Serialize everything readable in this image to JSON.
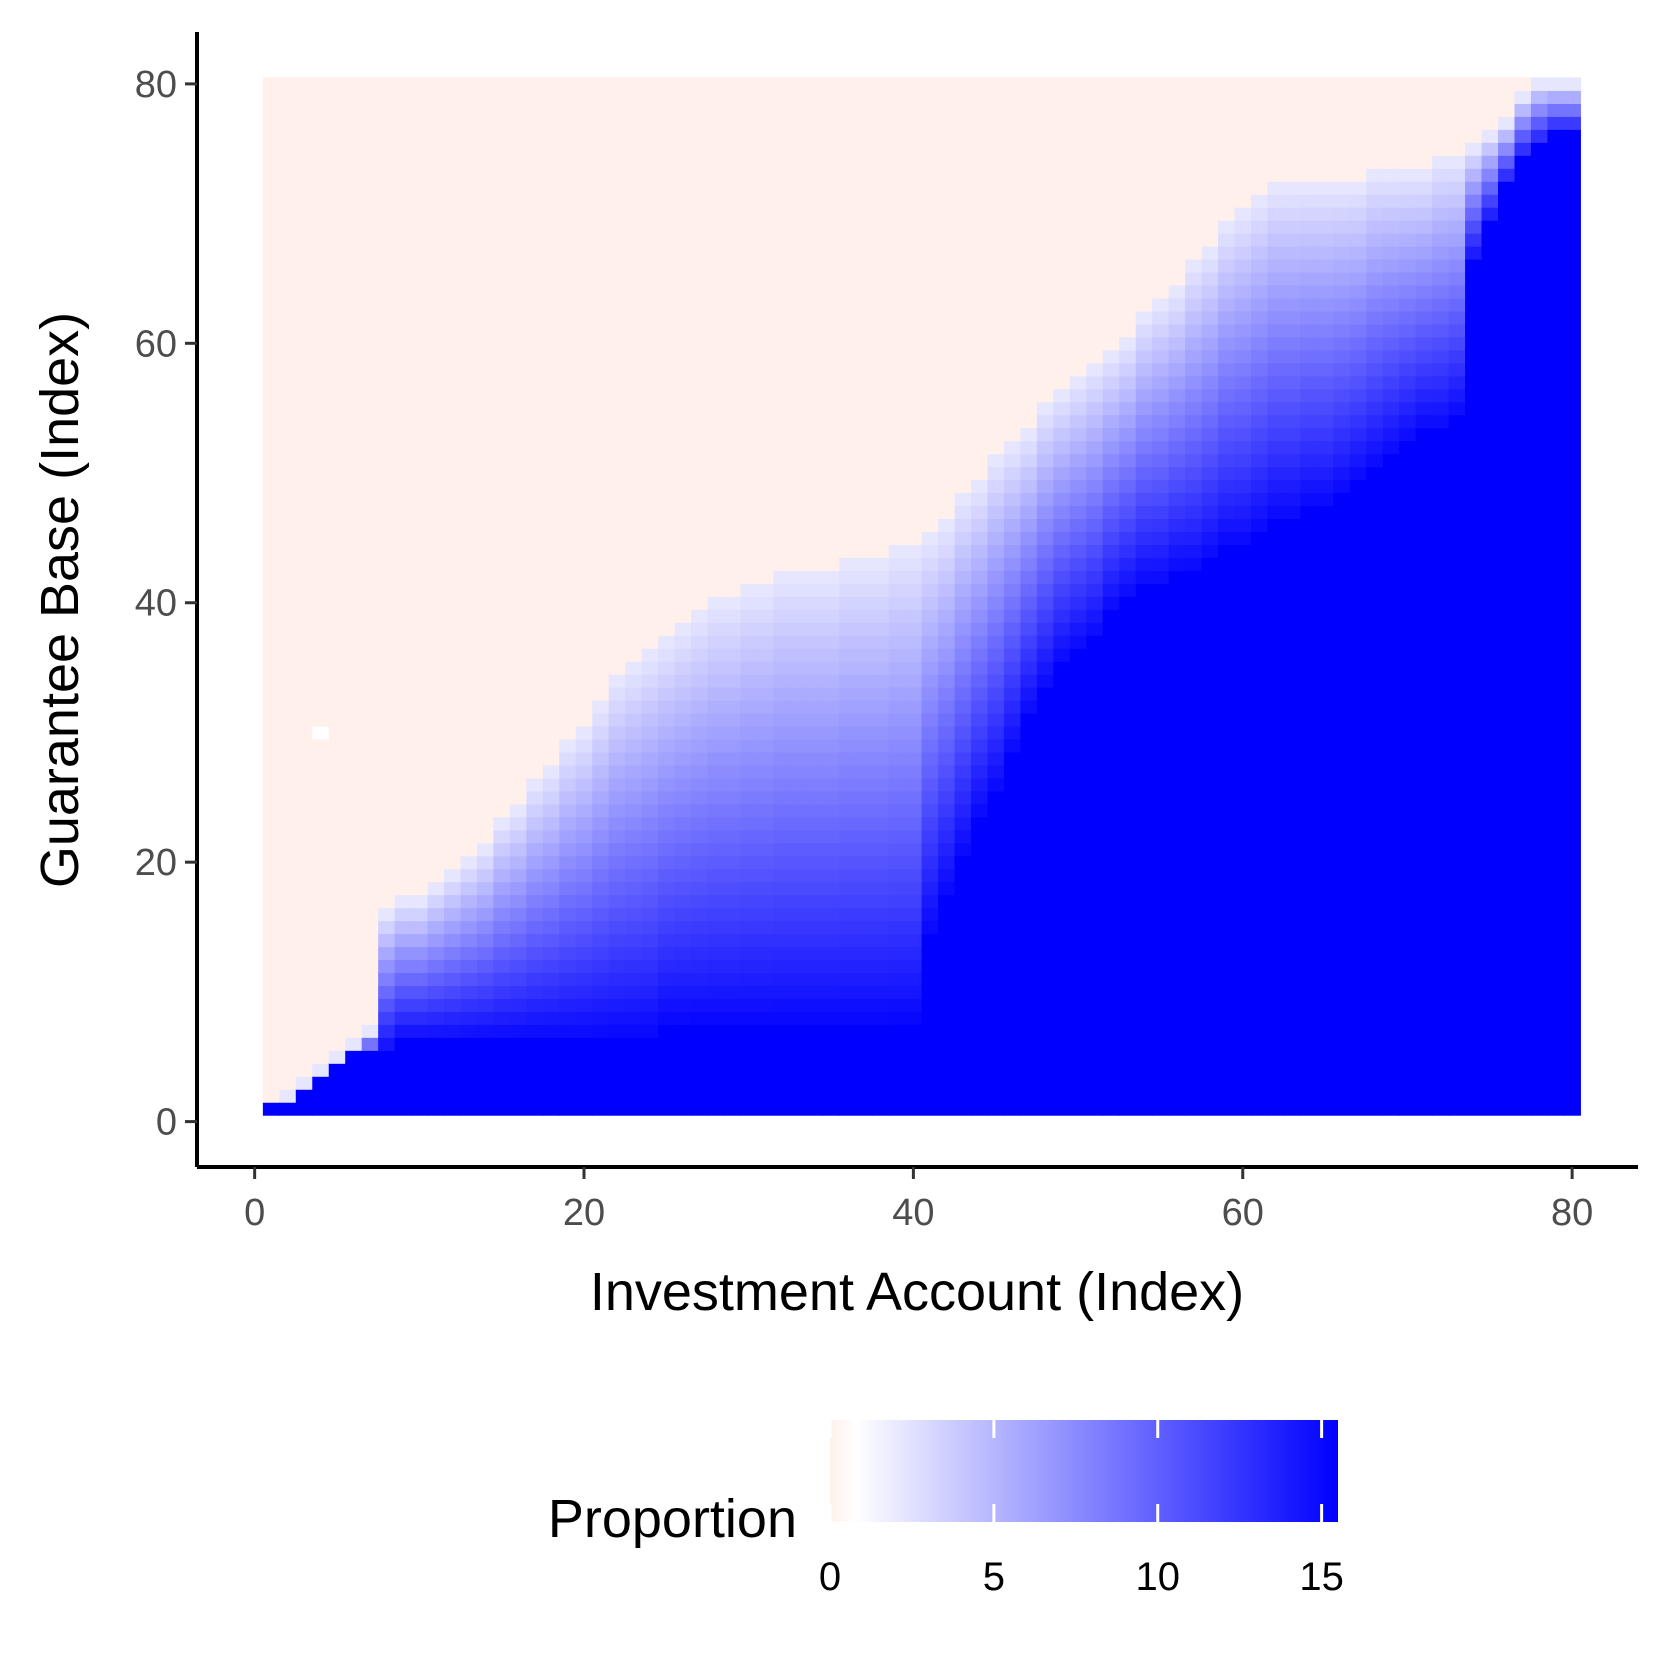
{
  "chart_data": {
    "type": "heatmap",
    "xlabel": "Investment Account (Index)",
    "ylabel": "Guarantee Base (Index)",
    "x_ticks": [
      "0",
      "20",
      "40",
      "60",
      "80"
    ],
    "y_ticks": [
      "0",
      "20",
      "40",
      "60",
      "80"
    ],
    "xlim": [
      -3.5,
      84
    ],
    "ylim": [
      -3.5,
      84
    ],
    "x_range": [
      1,
      80
    ],
    "y_range": [
      1,
      80
    ],
    "grid": false,
    "legend": {
      "title": "Proportion",
      "position": "bottom",
      "labels": [
        "0",
        "5",
        "10",
        "15"
      ],
      "min": 0,
      "max": 15.5
    },
    "colors": {
      "low": "#fff0ec",
      "mid": "#ffffff",
      "high": "#0000ff",
      "axis": "#000000"
    },
    "boundary_upper": [
      [
        1,
        1
      ],
      [
        7,
        7
      ],
      [
        8,
        16
      ],
      [
        11,
        18
      ],
      [
        14,
        21
      ],
      [
        18,
        27
      ],
      [
        21,
        32
      ],
      [
        23,
        35
      ],
      [
        27,
        39
      ],
      [
        30,
        41
      ],
      [
        34,
        42
      ],
      [
        37,
        43
      ],
      [
        40,
        44
      ],
      [
        42,
        46
      ],
      [
        44,
        49
      ],
      [
        46,
        52
      ],
      [
        49,
        56
      ],
      [
        52,
        59
      ],
      [
        56,
        64
      ],
      [
        60,
        70
      ],
      [
        62,
        72
      ],
      [
        66,
        72
      ],
      [
        70,
        73
      ],
      [
        73,
        74
      ],
      [
        75,
        76
      ],
      [
        78,
        80
      ],
      [
        80,
        80
      ]
    ],
    "boundary_full": [
      [
        1,
        1
      ],
      [
        2,
        1
      ],
      [
        5,
        4
      ],
      [
        7,
        5
      ],
      [
        10,
        6
      ],
      [
        20,
        6
      ],
      [
        30,
        7
      ],
      [
        40,
        7
      ],
      [
        41,
        14
      ],
      [
        43,
        20
      ],
      [
        46,
        28
      ],
      [
        48,
        33
      ],
      [
        50,
        36
      ],
      [
        53,
        40
      ],
      [
        57,
        42
      ],
      [
        61,
        45
      ],
      [
        66,
        48
      ],
      [
        70,
        52
      ],
      [
        73,
        54
      ],
      [
        74,
        66
      ],
      [
        76,
        72
      ],
      [
        78,
        75
      ],
      [
        80,
        76
      ]
    ],
    "notes": [
      {
        "x": 4,
        "y": 30,
        "value": 0
      }
    ]
  }
}
